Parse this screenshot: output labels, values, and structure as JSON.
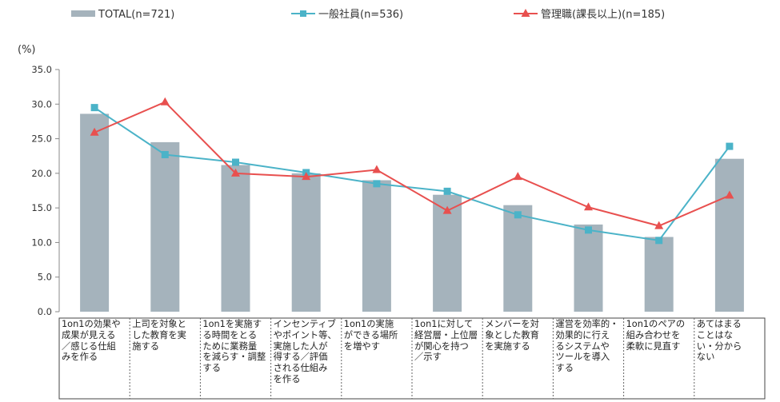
{
  "chart_data": {
    "type": "bar",
    "ylabel": "(%)",
    "ylim": [
      0,
      35
    ],
    "yticks": [
      "0.0",
      "5.0",
      "10.0",
      "15.0",
      "20.0",
      "25.0",
      "30.0",
      "35.0"
    ],
    "grid": false,
    "legend_position": "top",
    "categories": [
      "1on1の効果や成果が見える／感じる仕組みを作る",
      "上司を対象とした教育を実施する",
      "1on1を実施する時間をとるために業務量を減らす・調整する",
      "インセンティブやポイント等、実施した人が得する／評価される仕組みを作る",
      "1on1の実施ができる場所を増やす",
      "1on1に対して経営層・上位層が関心を持つ／示す",
      "メンバーを対象とした教育を実施する",
      "運営を効率的・効果的に行えるシステムやツールを導入する",
      "1on1のペアの組み合わせを柔軟に見直す",
      "あてはまることはない・分からない"
    ],
    "category_lines": [
      "1on1の効果や\n成果が見える\n／感じる仕組\nみを作る",
      "上司を対象と\nした教育を実\n施する",
      "1on1を実施す\nる時間をとる\nために業務量\nを減らす・調整\nする",
      "インセンティブ\nやポイント等、\n実施した人が\n得する／評価\nされる仕組み\nを作る",
      "1on1の実施\nができる場所\nを増やす",
      "1on1に対して\n経営層・上位層\nが関心を持つ\n／示す",
      "メンバーを対\n象とした教育\nを実施する",
      "運営を効率的・\n効果的に行え\nるシステムや\nツールを導入\nする",
      "1on1のペアの\n組み合わせを\n柔軟に見直す",
      "あてはまる\nことはな\nい・分から\nない"
    ],
    "series": [
      {
        "name": "TOTAL(n=721)",
        "type": "bar",
        "color": "#a5b3bc",
        "values": [
          28.6,
          24.5,
          21.2,
          20.0,
          19.0,
          16.9,
          15.4,
          12.6,
          10.8,
          22.1
        ]
      },
      {
        "name": "一般社員(n=536)",
        "type": "line",
        "color": "#4bb3c8",
        "marker": "square",
        "values": [
          29.5,
          22.7,
          21.6,
          20.1,
          18.5,
          17.4,
          14.0,
          11.8,
          10.3,
          23.9
        ]
      },
      {
        "name": "管理職(課長以上)(n=185)",
        "type": "line",
        "color": "#e8504f",
        "marker": "triangle",
        "values": [
          25.9,
          30.3,
          20.0,
          19.5,
          20.5,
          14.6,
          19.5,
          15.1,
          12.4,
          16.8
        ]
      }
    ]
  }
}
